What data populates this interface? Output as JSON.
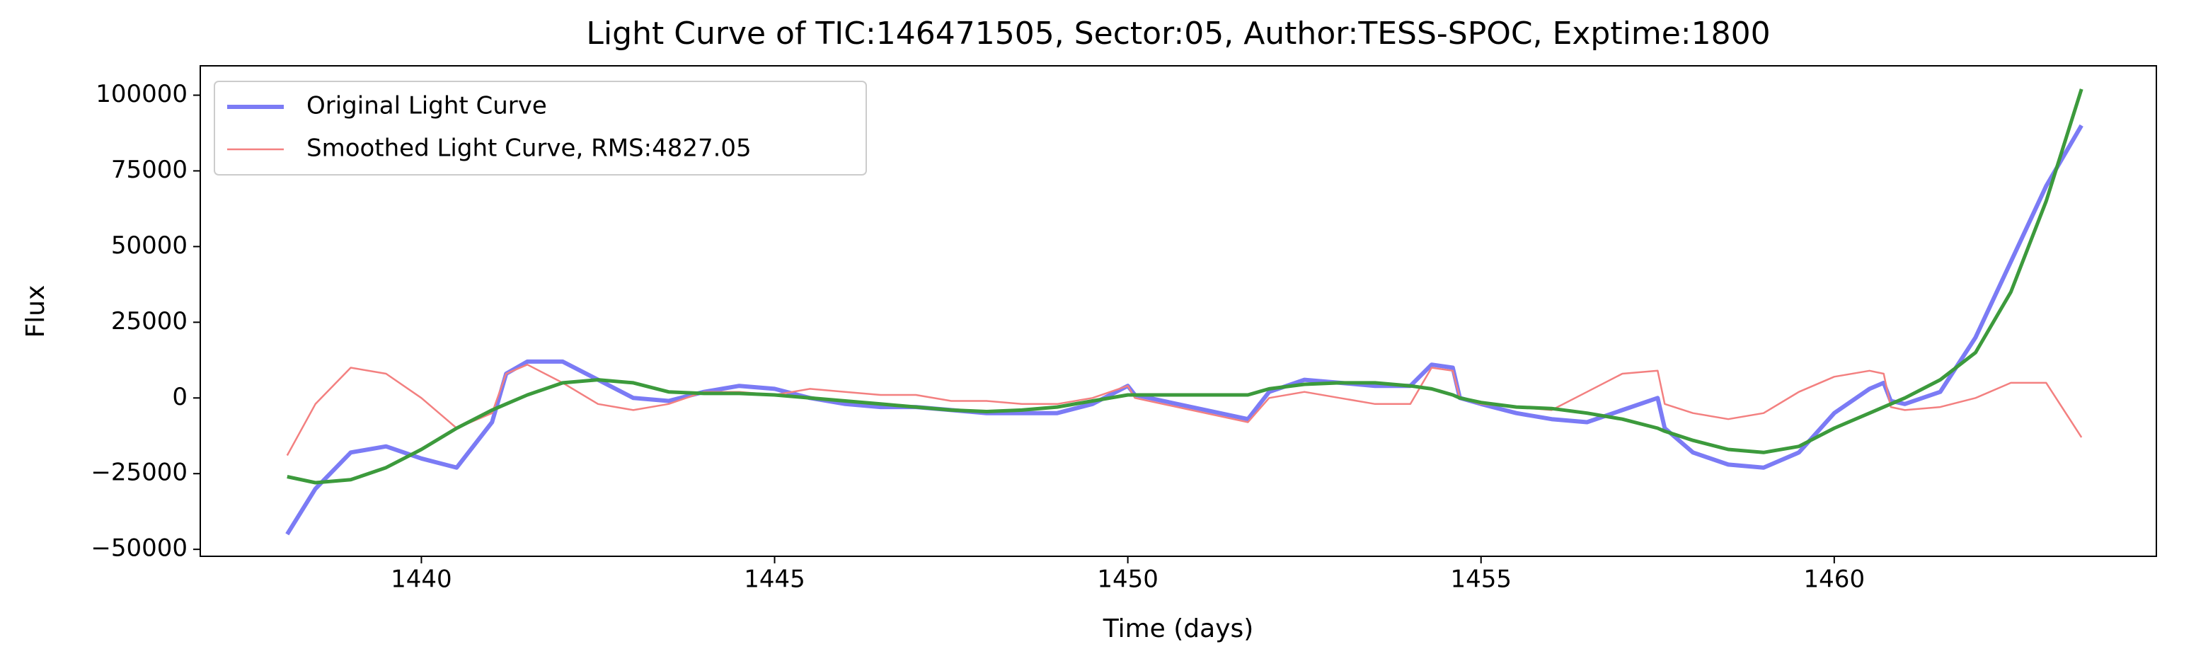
{
  "chart_data": {
    "type": "line",
    "title": "Light Curve of TIC:146471505, Sector:05, Author:TESS-SPOC, Exptime:1800",
    "xlabel": "Time (days)",
    "ylabel": "Flux",
    "x": [
      1438.1,
      1438.5,
      1439,
      1439.5,
      1440,
      1440.5,
      1441,
      1441.2,
      1441.5,
      1442,
      1442.5,
      1443,
      1443.5,
      1444,
      1444.5,
      1445,
      1445.5,
      1446,
      1446.5,
      1447,
      1447.5,
      1448,
      1448.5,
      1449,
      1449.5,
      1450,
      1450.1,
      1451.7,
      1452,
      1452.5,
      1453,
      1453.5,
      1454,
      1454.3,
      1454.6,
      1454.7,
      1455,
      1455.5,
      1456,
      1456.5,
      1457,
      1457.5,
      1457.6,
      1458,
      1458.5,
      1459,
      1459.5,
      1460,
      1460.5,
      1460.7,
      1460.8,
      1461,
      1461.5,
      1462,
      1462.5,
      1463,
      1463.5
    ],
    "series": [
      {
        "name": "Original Light Curve",
        "color": "#7b7bf5",
        "values": [
          -45000,
          -30000,
          -18000,
          -16000,
          -20000,
          -23000,
          -8000,
          8000,
          12000,
          12000,
          6000,
          0,
          -1000,
          2000,
          4000,
          3000,
          0,
          -2000,
          -3000,
          -3000,
          -4000,
          -5000,
          -5000,
          -5000,
          -2000,
          4000,
          1000,
          -7000,
          2000,
          6000,
          5000,
          4000,
          4000,
          11000,
          10000,
          0,
          -2000,
          -5000,
          -7000,
          -8000,
          -4000,
          0,
          -10000,
          -18000,
          -22000,
          -23000,
          -18000,
          -5000,
          3000,
          5000,
          -1000,
          -2000,
          2000,
          20000,
          45000,
          70000,
          90000
        ]
      },
      {
        "name": "Smoothed Light Curve, RMS:4827.05",
        "color": "#f38080",
        "values": [
          -19000,
          -2000,
          10000,
          8000,
          0,
          -10000,
          -5000,
          8000,
          11000,
          5000,
          -2000,
          -4000,
          -2000,
          2000,
          2000,
          1000,
          3000,
          2000,
          1000,
          1000,
          -1000,
          -1000,
          -2000,
          -2000,
          0,
          4000,
          0,
          -8000,
          0,
          2000,
          0,
          -2000,
          -2000,
          10000,
          9000,
          0,
          -2000,
          -3000,
          -4000,
          2000,
          8000,
          9000,
          -2000,
          -5000,
          -7000,
          -5000,
          2000,
          7000,
          9000,
          8000,
          -3000,
          -4000,
          -3000,
          0,
          5000,
          5000,
          -13000
        ]
      },
      {
        "color": "#3c9a3c",
        "values": [
          -26000,
          -28000,
          -27000,
          -23000,
          -17000,
          -10000,
          -4000,
          -2000,
          1000,
          5000,
          6000,
          5000,
          2000,
          1500,
          1500,
          1000,
          0,
          -1000,
          -2000,
          -3000,
          -4000,
          -4500,
          -4000,
          -3000,
          -1000,
          1000,
          1000,
          1000,
          3000,
          4500,
          5000,
          5000,
          4000,
          3000,
          1000,
          0,
          -1500,
          -3000,
          -3500,
          -5000,
          -7000,
          -10000,
          -11000,
          -14000,
          -17000,
          -18000,
          -16000,
          -10000,
          -5000,
          -3000,
          -2000,
          0,
          6000,
          15000,
          35000,
          65000,
          102000
        ]
      }
    ],
    "xlim": [
      1436.87,
      1464.56
    ],
    "xticks": [
      1440,
      1445,
      1450,
      1455,
      1460
    ],
    "ylim": [
      -52300,
      109700
    ],
    "yticks": [
      {
        "value": -50000,
        "label": "−50000"
      },
      {
        "value": -25000,
        "label": "−25000"
      },
      0,
      25000,
      50000,
      75000,
      100000
    ],
    "grid": false,
    "legend": "upper left"
  }
}
